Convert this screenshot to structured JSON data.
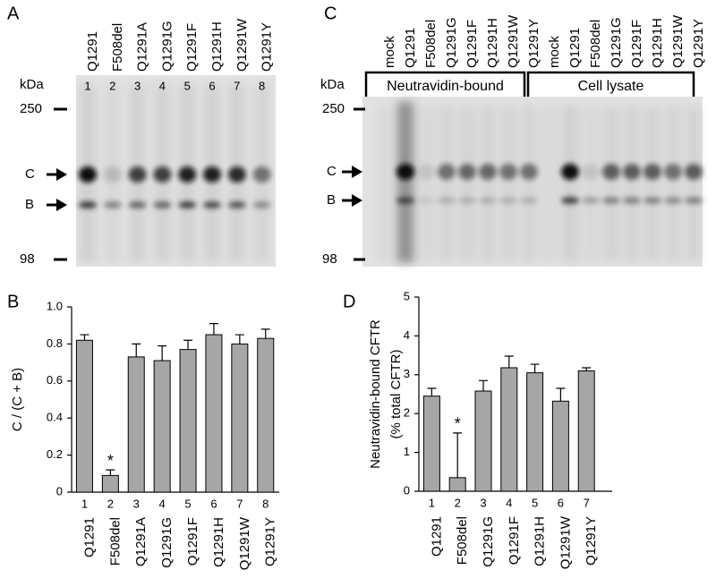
{
  "blots": [
    {
      "panel": "A",
      "lanes": [
        "Q1291",
        "F508del",
        "Q1291A",
        "Q1291G",
        "Q1291F",
        "Q1291H",
        "Q1291W",
        "Q1291Y"
      ],
      "lane_numbers": [
        "1",
        "2",
        "3",
        "4",
        "5",
        "6",
        "7",
        "8"
      ],
      "unit": "kDa",
      "markers": [
        "250",
        "98"
      ],
      "bands": [
        "C",
        "B"
      ]
    },
    {
      "panel": "C",
      "lanes": [
        "mock",
        "Q1291",
        "F508del",
        "Q1291G",
        "Q1291F",
        "Q1291H",
        "Q1291W",
        "Q1291Y",
        "mock",
        "Q1291",
        "F508del",
        "Q1291G",
        "Q1291F",
        "Q1291H",
        "Q1291W",
        "Q1291Y"
      ],
      "groups": [
        "Neutravidin-bound",
        "Cell lysate"
      ],
      "unit": "kDa",
      "markers": [
        "250",
        "98"
      ],
      "bands": [
        "C",
        "B"
      ]
    }
  ],
  "chart_data": [
    {
      "type": "bar",
      "panel": "B",
      "ylabel": "C / (C + B)",
      "color": "#a6a6a6",
      "categories": [
        "Q1291",
        "F508del",
        "Q1291A",
        "Q1291G",
        "Q1291F",
        "Q1291H",
        "Q1291W",
        "Q1291Y"
      ],
      "lane_numbers": [
        "1",
        "2",
        "3",
        "4",
        "5",
        "6",
        "7",
        "8"
      ],
      "values": [
        0.82,
        0.09,
        0.73,
        0.71,
        0.77,
        0.85,
        0.8,
        0.83
      ],
      "errors": [
        0.03,
        0.03,
        0.07,
        0.08,
        0.05,
        0.06,
        0.05,
        0.05
      ],
      "annotation": {
        "text": "*",
        "category": "F508del"
      },
      "ylim": [
        0,
        1
      ],
      "yticks": [
        0,
        0.2,
        0.4,
        0.6,
        0.8,
        {
          "value": 1,
          "label": "1.0"
        }
      ]
    },
    {
      "type": "bar",
      "panel": "D",
      "ylabel": "Neutravidin-bound CFTR",
      "ylabel_sub": "(% total CFTR)",
      "color": "#a6a6a6",
      "categories": [
        "Q1291",
        "F508del",
        "Q1291G",
        "Q1291F",
        "Q1291H",
        "Q1291W",
        "Q1291Y"
      ],
      "lane_numbers": [
        "1",
        "2",
        "3",
        "4",
        "5",
        "6",
        "7"
      ],
      "values": [
        2.45,
        0.35,
        2.58,
        3.18,
        3.05,
        2.32,
        3.1
      ],
      "errors": [
        0.2,
        1.15,
        0.27,
        0.3,
        0.22,
        0.33,
        0.08
      ],
      "annotation": {
        "text": "*",
        "category": "F508del"
      },
      "ylim": [
        0,
        5
      ],
      "yticks": [
        0,
        1,
        2,
        3,
        4,
        5
      ]
    }
  ]
}
